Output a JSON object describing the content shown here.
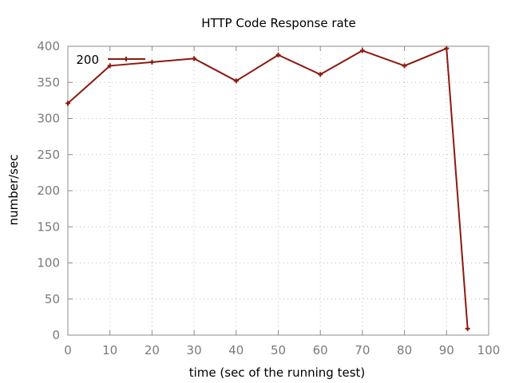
{
  "chart_data": {
    "type": "line",
    "title": "HTTP Code Response rate",
    "xlabel": "time (sec of the running test)",
    "ylabel": "number/sec",
    "xlim": [
      0,
      100
    ],
    "ylim": [
      0,
      400
    ],
    "xticks": [
      "0",
      "10",
      "20",
      "30",
      "40",
      "50",
      "60",
      "70",
      "80",
      "90",
      "100"
    ],
    "yticks": [
      "0",
      "50",
      "100",
      "150",
      "200",
      "250",
      "300",
      "350",
      "400"
    ],
    "grid": true,
    "legend_position": "top-left",
    "series": [
      {
        "name": "200",
        "color": "#8b1a10",
        "marker": "plus",
        "x": [
          0,
          10,
          20,
          30,
          40,
          50,
          60,
          70,
          80,
          90,
          95
        ],
        "y": [
          321,
          373,
          378,
          383,
          352,
          388,
          361,
          394,
          373,
          397,
          9
        ]
      }
    ]
  }
}
